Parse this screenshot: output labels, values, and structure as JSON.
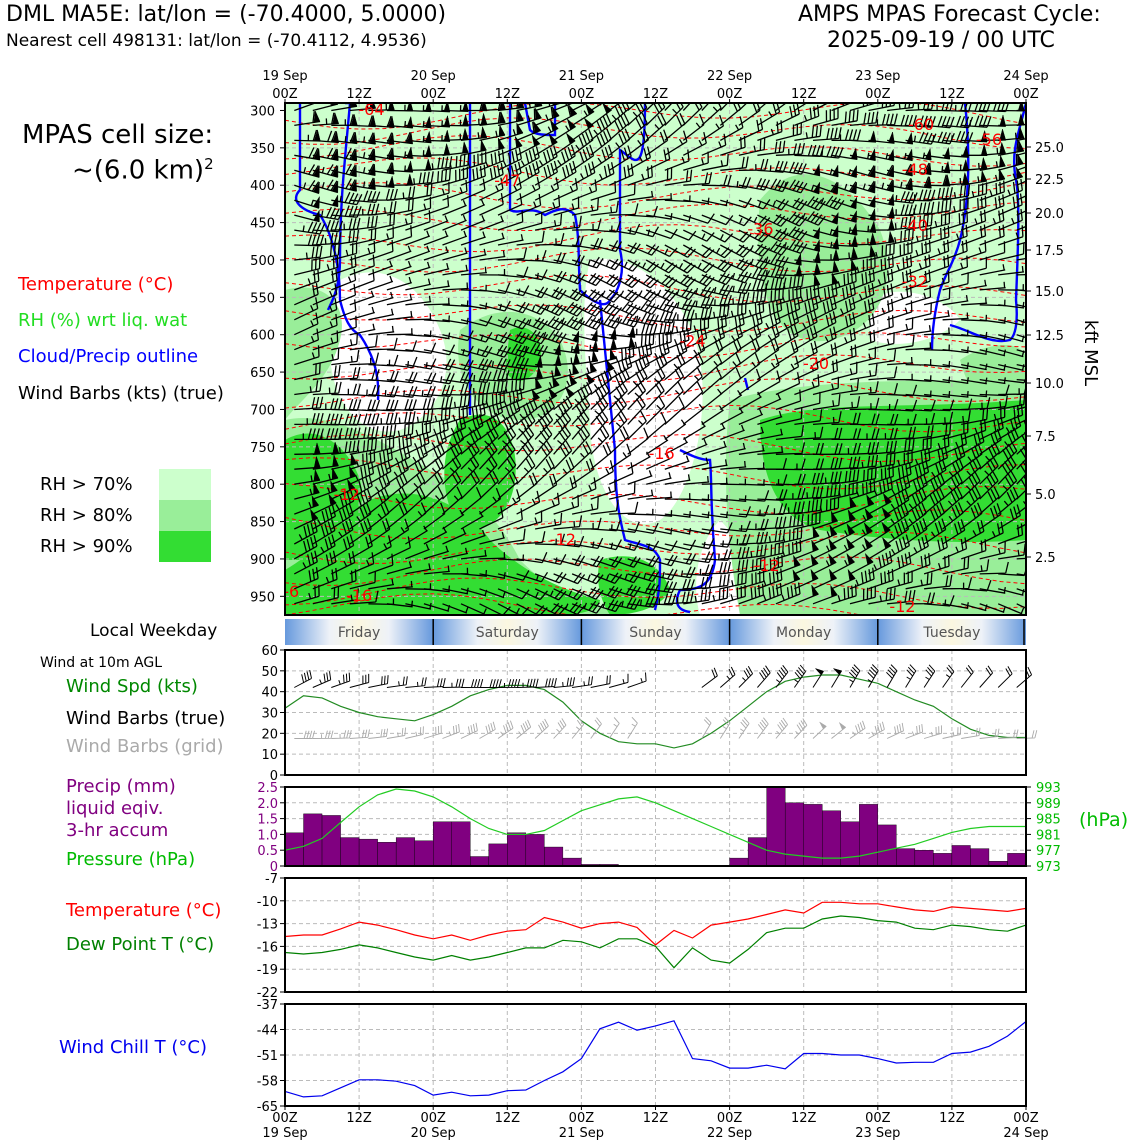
{
  "header": {
    "station_line": "DML MA5E: lat/lon = (-70.4000, 5.0000)",
    "cell_line": "Nearest cell 498131: lat/lon = (-70.4112, 4.9536)",
    "cycle_title": "AMPS MPAS Forecast Cycle:",
    "cycle_time": "2025-09-19 / 00 UTC"
  },
  "side_legend": {
    "cell_size_label": "MPAS cell size:",
    "cell_size_value": "~(6.0 km)",
    "cell_size_exp": "2",
    "temperature": "Temperature (°C)",
    "rh": "RH (%) wrt liq. wat",
    "cloud": "Cloud/Precip outline",
    "wind": "Wind Barbs (kts) (true)",
    "rh70": "RH > 70%",
    "rh80": "RH > 80%",
    "rh90": "RH > 90%",
    "local_weekday": "Local Weekday",
    "wind_10m": "Wind at 10m AGL",
    "wind_spd": "Wind Spd (kts)",
    "barbs_true": "Wind Barbs (true)",
    "barbs_grid": "Wind Barbs (grid)",
    "precip_1": "Precip (mm)",
    "precip_2": "liquid eqiv.",
    "precip_3": "3-hr accum",
    "pressure": "Pressure (hPa)",
    "temp2": "Temperature (°C)",
    "dew": "Dew Point T (°C)",
    "chill": "Wind Chill T (°C)",
    "hpa_unit": "(hPa)",
    "kft_label": "kft MSL"
  },
  "colors": {
    "temperature": "#ff0000",
    "rh_green": "#22cc22",
    "cloud": "#0000ff",
    "rh70": "#ccffcc",
    "rh80": "#99ee99",
    "rh90": "#33dd33",
    "precip": "#800080",
    "pressure": "#00bb00",
    "dewpoint": "#008000",
    "windchill": "#0000ee",
    "grid_barbs": "#aaaaaa"
  },
  "chart_data": [
    {
      "type": "heatmap",
      "name": "cross-section",
      "x_ticks_top": [
        {
          "day": "19 Sep",
          "hour": "00Z"
        },
        {
          "day": "",
          "hour": "12Z"
        },
        {
          "day": "20 Sep",
          "hour": "00Z"
        },
        {
          "day": "",
          "hour": "12Z"
        },
        {
          "day": "21 Sep",
          "hour": "00Z"
        },
        {
          "day": "",
          "hour": "12Z"
        },
        {
          "day": "22 Sep",
          "hour": "00Z"
        },
        {
          "day": "",
          "hour": "12Z"
        },
        {
          "day": "23 Sep",
          "hour": "00Z"
        },
        {
          "day": "",
          "hour": "12Z"
        },
        {
          "day": "24 Sep",
          "hour": "00Z"
        }
      ],
      "pressure_ticks": [
        "300",
        "350",
        "400",
        "450",
        "500",
        "550",
        "600",
        "650",
        "700",
        "750",
        "800",
        "850",
        "900",
        "950"
      ],
      "height_ticks": [
        "25.0",
        "22.5",
        "20.0",
        "17.5",
        "15.0",
        "12.5",
        "10.0",
        "7.5",
        "5.0",
        "2.5"
      ],
      "ylim": [
        975,
        290
      ],
      "temperature_labels": [
        {
          "text": "-64",
          "hour": 14,
          "p": 300
        },
        {
          "text": "-47",
          "hour": 36,
          "p": 395
        },
        {
          "text": "-36",
          "hour": 77,
          "p": 460
        },
        {
          "text": "-60",
          "hour": 103,
          "p": 320
        },
        {
          "text": "-56",
          "hour": 114,
          "p": 340
        },
        {
          "text": "-48",
          "hour": 102,
          "p": 380
        },
        {
          "text": "-40",
          "hour": 102,
          "p": 455
        },
        {
          "text": "-32",
          "hour": 102,
          "p": 530
        },
        {
          "text": "-24",
          "hour": 66,
          "p": 610
        },
        {
          "text": "-20",
          "hour": 86,
          "p": 640
        },
        {
          "text": "-16",
          "hour": 61,
          "p": 760
        },
        {
          "text": "-12",
          "hour": 10,
          "p": 815
        },
        {
          "text": "-12",
          "hour": 45,
          "p": 875
        },
        {
          "text": "-12",
          "hour": 78,
          "p": 910
        },
        {
          "text": "-12",
          "hour": 100,
          "p": 965
        },
        {
          "text": "-16",
          "hour": 12,
          "p": 950
        },
        {
          "text": "-6",
          "hour": 1,
          "p": 945
        }
      ]
    },
    {
      "type": "line",
      "name": "wind-speed",
      "ylim": [
        0,
        60
      ],
      "yticks": [
        "0",
        "10",
        "20",
        "30",
        "40",
        "50",
        "60"
      ],
      "x_hours": [
        0,
        3,
        6,
        9,
        12,
        15,
        18,
        21,
        24,
        27,
        30,
        33,
        36,
        39,
        42,
        45,
        48,
        51,
        54,
        57,
        60,
        63,
        66,
        69,
        72,
        75,
        78,
        81,
        84,
        87,
        90,
        93,
        96,
        99,
        102,
        105,
        108,
        111,
        114,
        117,
        120
      ],
      "values": [
        32,
        38,
        37,
        33,
        30,
        28,
        27,
        26,
        29,
        33,
        38,
        41,
        43,
        43,
        41,
        35,
        26,
        20,
        16,
        15,
        15,
        13,
        15,
        20,
        26,
        33,
        40,
        45,
        47,
        48,
        48,
        46,
        44,
        40,
        36,
        33,
        27,
        22,
        19,
        18,
        18
      ]
    },
    {
      "type": "bar",
      "name": "precip-3hr",
      "ylim": [
        0,
        2.5
      ],
      "yticks": [
        "0",
        "0.5",
        "1.0",
        "1.5",
        "2.0",
        "2.5"
      ],
      "x_hours": [
        0,
        3,
        6,
        9,
        12,
        15,
        18,
        21,
        24,
        27,
        30,
        33,
        36,
        39,
        42,
        45,
        48,
        51,
        54,
        57,
        60,
        63,
        66,
        69,
        72,
        75,
        78,
        81,
        84,
        87,
        90,
        93,
        96,
        99,
        102,
        105,
        108,
        111,
        114,
        117
      ],
      "values": [
        1.05,
        1.65,
        1.6,
        0.9,
        0.85,
        0.75,
        0.9,
        0.8,
        1.4,
        1.4,
        0.3,
        0.7,
        1.05,
        1.0,
        0.6,
        0.25,
        0.05,
        0.05,
        0,
        0,
        0,
        0,
        0,
        0,
        0.25,
        0.9,
        2.5,
        2.0,
        1.95,
        1.75,
        1.4,
        1.95,
        1.3,
        0.55,
        0.5,
        0.4,
        0.65,
        0.55,
        0.15,
        0.4
      ]
    },
    {
      "type": "line",
      "name": "pressure",
      "ylim": [
        973,
        993
      ],
      "yticks": [
        "973",
        "977",
        "981",
        "985",
        "989",
        "993"
      ],
      "x_hours": [
        0,
        3,
        6,
        9,
        12,
        15,
        18,
        21,
        24,
        27,
        30,
        33,
        36,
        39,
        42,
        45,
        48,
        51,
        54,
        57,
        60,
        63,
        66,
        69,
        72,
        75,
        78,
        81,
        84,
        87,
        90,
        93,
        96,
        99,
        102,
        105,
        108,
        111,
        114,
        117,
        120
      ],
      "values": [
        977,
        978,
        980,
        984,
        988,
        991,
        992.5,
        992,
        990.5,
        988,
        985,
        982.5,
        981,
        981,
        982,
        984.5,
        987,
        988.5,
        990,
        990.5,
        989,
        987,
        985,
        983,
        981,
        979,
        977,
        976,
        975.5,
        975,
        975,
        975.5,
        976.5,
        977.5,
        978.5,
        980,
        981.5,
        982.5,
        983,
        983,
        983
      ]
    },
    {
      "type": "line",
      "name": "temperature-dewpoint",
      "ylim": [
        -22,
        -7
      ],
      "yticks": [
        "-22",
        "-19",
        "-16",
        "-13",
        "-10",
        "-7"
      ],
      "x_hours": [
        0,
        3,
        6,
        9,
        12,
        15,
        18,
        21,
        24,
        27,
        30,
        33,
        36,
        39,
        42,
        45,
        48,
        51,
        54,
        57,
        60,
        63,
        66,
        69,
        72,
        75,
        78,
        81,
        84,
        87,
        90,
        93,
        96,
        99,
        102,
        105,
        108,
        111,
        114,
        117,
        120
      ],
      "series": [
        {
          "name": "Temperature (°C)",
          "values": [
            -14.7,
            -14.5,
            -14.5,
            -13.7,
            -12.8,
            -13.2,
            -13.8,
            -14.5,
            -15.0,
            -14.5,
            -15.2,
            -14.5,
            -14.0,
            -13.8,
            -12.2,
            -12.8,
            -13.6,
            -13.0,
            -12.8,
            -13.5,
            -15.8,
            -13.9,
            -14.9,
            -13.2,
            -12.8,
            -12.4,
            -11.8,
            -11.2,
            -11.6,
            -10.2,
            -10.2,
            -10.4,
            -10.4,
            -10.8,
            -11.2,
            -11.4,
            -10.8,
            -11.0,
            -11.2,
            -11.4,
            -11.0
          ]
        },
        {
          "name": "Dew Point T (°C)",
          "values": [
            -16.8,
            -17.0,
            -16.8,
            -16.4,
            -15.8,
            -16.2,
            -16.8,
            -17.4,
            -17.8,
            -17.2,
            -17.8,
            -17.4,
            -16.8,
            -16.2,
            -16.2,
            -15.2,
            -15.4,
            -16.2,
            -15.0,
            -15.0,
            -16.0,
            -18.8,
            -16.2,
            -17.8,
            -18.2,
            -16.4,
            -14.2,
            -13.6,
            -13.6,
            -12.4,
            -12.0,
            -12.2,
            -12.6,
            -12.8,
            -13.6,
            -13.8,
            -13.2,
            -13.4,
            -13.8,
            -14.0,
            -13.2
          ]
        }
      ]
    },
    {
      "type": "line",
      "name": "wind-chill",
      "ylim": [
        -65,
        -37
      ],
      "yticks": [
        "-65",
        "-58",
        "-51",
        "-44",
        "-37"
      ],
      "x_hours": [
        0,
        3,
        6,
        9,
        12,
        15,
        18,
        21,
        24,
        27,
        30,
        33,
        36,
        39,
        42,
        45,
        48,
        51,
        54,
        57,
        60,
        63,
        66,
        69,
        72,
        75,
        78,
        81,
        84,
        87,
        90,
        93,
        96,
        99,
        102,
        105,
        108,
        111,
        114,
        117,
        120
      ],
      "values": [
        -61.0,
        -62.5,
        -62.2,
        -60.0,
        -57.8,
        -57.8,
        -58.2,
        -59.4,
        -62.0,
        -61.2,
        -62.2,
        -62.0,
        -60.8,
        -60.6,
        -58.0,
        -55.6,
        -52.0,
        -43.8,
        -42.0,
        -44.2,
        -43.0,
        -41.6,
        -52.0,
        -52.6,
        -54.6,
        -54.6,
        -53.8,
        -54.8,
        -50.6,
        -50.6,
        -51.0,
        -51.0,
        -52.0,
        -53.2,
        -53.0,
        -53.0,
        -50.6,
        -50.2,
        -48.6,
        -45.8,
        -41.8
      ]
    }
  ],
  "weekday_bar": {
    "days": [
      "Friday",
      "Saturday",
      "Sunday",
      "Monday",
      "Tuesday"
    ]
  },
  "x_ticks_bottom": [
    {
      "hour": "00Z",
      "day": "19 Sep"
    },
    {
      "hour": "12Z",
      "day": ""
    },
    {
      "hour": "00Z",
      "day": "20 Sep"
    },
    {
      "hour": "12Z",
      "day": ""
    },
    {
      "hour": "00Z",
      "day": "21 Sep"
    },
    {
      "hour": "12Z",
      "day": ""
    },
    {
      "hour": "00Z",
      "day": "22 Sep"
    },
    {
      "hour": "12Z",
      "day": ""
    },
    {
      "hour": "00Z",
      "day": "23 Sep"
    },
    {
      "hour": "12Z",
      "day": ""
    },
    {
      "hour": "00Z",
      "day": "24 Sep"
    }
  ]
}
